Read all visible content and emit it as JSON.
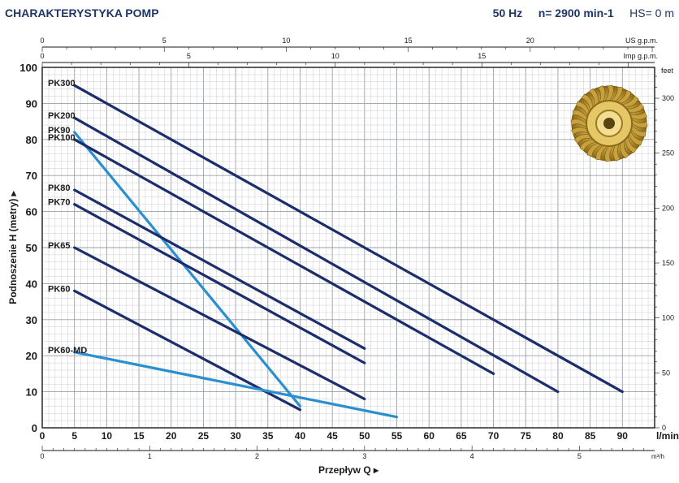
{
  "header": {
    "title": "CHARAKTERYSTYKA POMP",
    "freq": "50 Hz",
    "speed": "n= 2900 min-1",
    "hs": "HS= 0 m"
  },
  "chart_data": {
    "type": "line",
    "xlabel": "Przepływ Q",
    "ylabel": "Podnoszenie H (metry)",
    "xlim": [
      0,
      95
    ],
    "ylim": [
      0,
      100
    ],
    "x_unit": "l/min",
    "x_ticks": [
      0,
      5,
      10,
      15,
      20,
      25,
      30,
      35,
      40,
      45,
      50,
      55,
      60,
      65,
      70,
      75,
      80,
      85,
      90
    ],
    "y_ticks": [
      0,
      10,
      20,
      30,
      40,
      50,
      60,
      70,
      80,
      90,
      100
    ],
    "m3h_axis": {
      "unit": "m³/h",
      "ticks": [
        0,
        1,
        2,
        3,
        4,
        5
      ]
    },
    "us_gpm_axis": {
      "unit": "US g.p.m.",
      "ticks": [
        0,
        5,
        10,
        15,
        20
      ]
    },
    "imp_gpm_axis": {
      "unit": "Imp g.p.m.",
      "ticks": [
        0,
        5,
        10,
        15
      ]
    },
    "feet_axis": {
      "unit": "feet",
      "ticks": [
        50,
        100,
        150,
        200,
        250,
        300
      ]
    },
    "series": [
      {
        "name": "PK300",
        "color": "#1c2d6b",
        "points": [
          [
            5,
            95
          ],
          [
            90,
            10
          ]
        ]
      },
      {
        "name": "PK200",
        "color": "#1c2d6b",
        "points": [
          [
            5,
            86
          ],
          [
            80,
            10
          ]
        ]
      },
      {
        "name": "PK90",
        "color": "#2a8fd0",
        "points": [
          [
            5,
            82
          ],
          [
            40,
            6
          ]
        ]
      },
      {
        "name": "PK100",
        "color": "#1c2d6b",
        "points": [
          [
            5,
            80
          ],
          [
            70,
            15
          ]
        ]
      },
      {
        "name": "PK80",
        "color": "#1c2d6b",
        "points": [
          [
            5,
            66
          ],
          [
            50,
            22
          ]
        ]
      },
      {
        "name": "PK70",
        "color": "#1c2d6b",
        "points": [
          [
            5,
            62
          ],
          [
            50,
            18
          ]
        ]
      },
      {
        "name": "PK65",
        "color": "#1c2d6b",
        "points": [
          [
            5,
            50
          ],
          [
            50,
            8
          ]
        ]
      },
      {
        "name": "PK60",
        "color": "#1c2d6b",
        "points": [
          [
            5,
            38
          ],
          [
            40,
            5
          ]
        ]
      },
      {
        "name": "PK60-MD",
        "color": "#2a8fd0",
        "points": [
          [
            5,
            21
          ],
          [
            55,
            3
          ]
        ]
      }
    ]
  }
}
